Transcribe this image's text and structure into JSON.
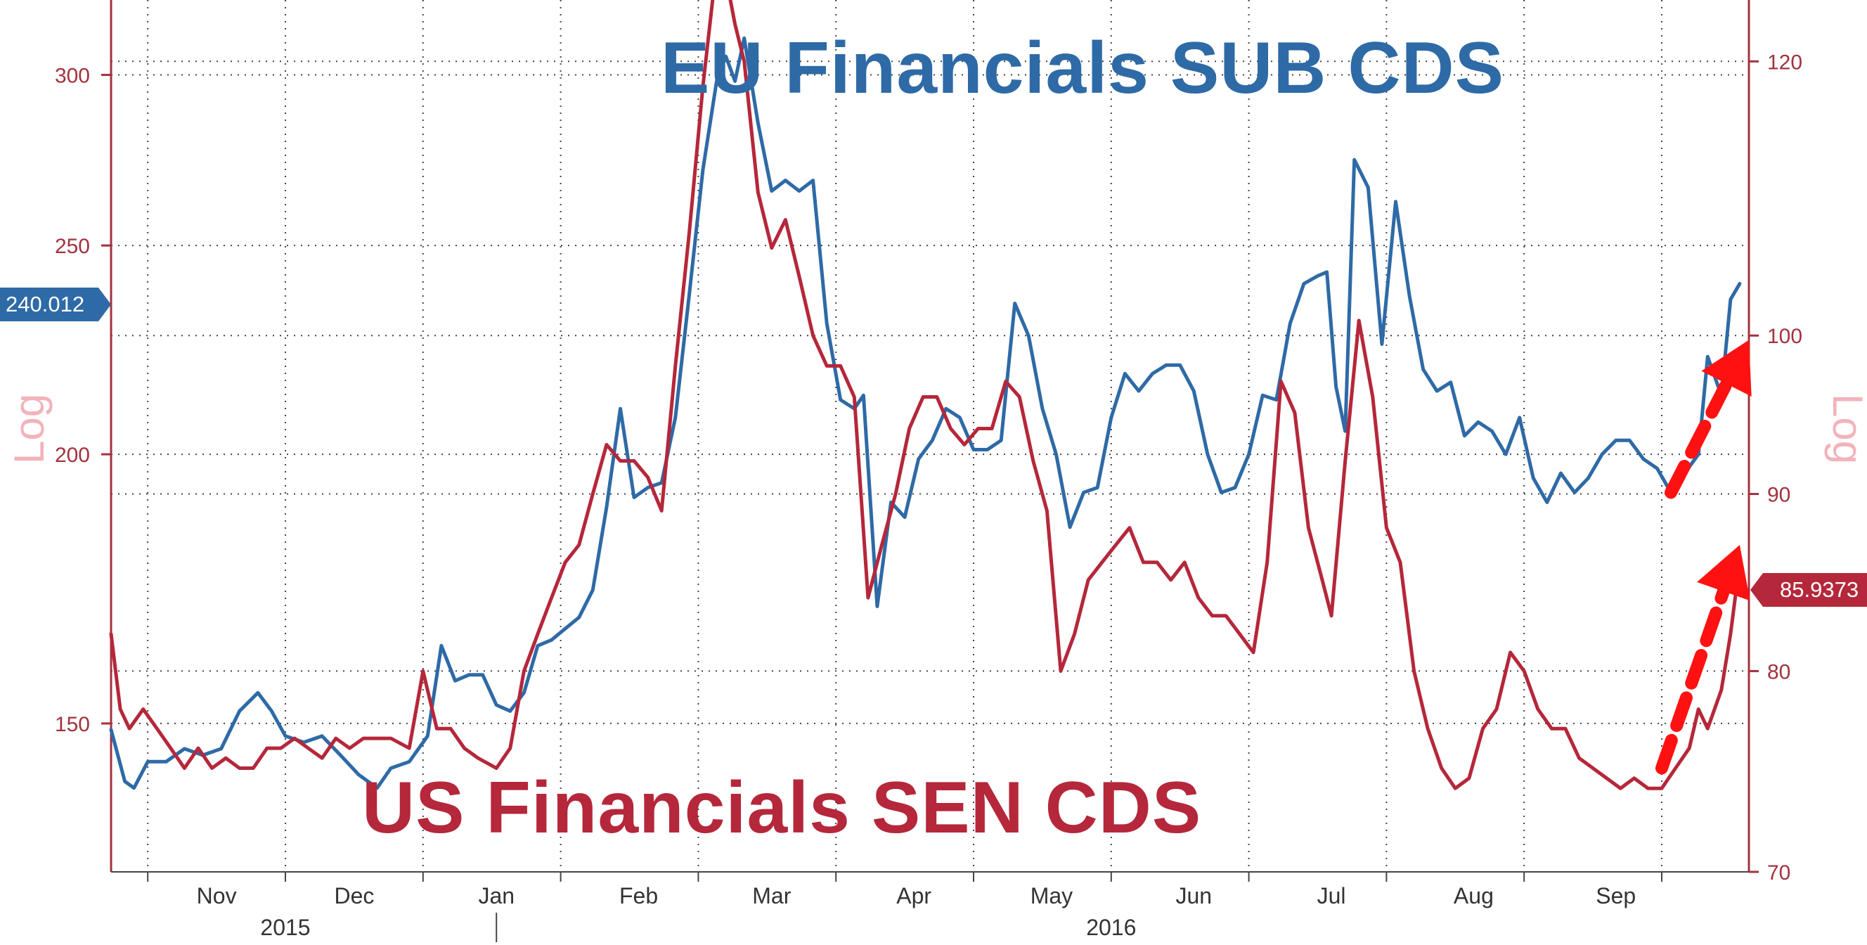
{
  "chart_data": {
    "type": "line",
    "title_eu": "EU Financials SUB CDS",
    "title_us": "US Financials SEN CDS",
    "left_axis": {
      "label": "Log",
      "scale": "log",
      "range": [
        128,
        325
      ],
      "ticks": [
        150,
        200,
        250,
        300
      ]
    },
    "right_axis": {
      "label": "Log",
      "scale": "log",
      "range": [
        70,
        125
      ],
      "ticks": [
        70,
        80,
        90,
        100,
        120
      ]
    },
    "x_axis": {
      "range": [
        "2015-10-09",
        "2016-09-30"
      ],
      "month_ticks": [
        "2015-10-17",
        "2015-11-16",
        "2015-12-16",
        "2016-01-15",
        "2016-02-14",
        "2016-03-15",
        "2016-04-14",
        "2016-05-14",
        "2016-06-13",
        "2016-07-13",
        "2016-08-12",
        "2016-09-11"
      ],
      "month_labels": [
        {
          "label": "Nov",
          "date": "2015-11-01"
        },
        {
          "label": "Dec",
          "date": "2015-12-01"
        },
        {
          "label": "Jan",
          "date": "2016-01-01"
        },
        {
          "label": "Feb",
          "date": "2016-02-01"
        },
        {
          "label": "Mar",
          "date": "2016-03-01"
        },
        {
          "label": "Apr",
          "date": "2016-04-01"
        },
        {
          "label": "May",
          "date": "2016-05-01"
        },
        {
          "label": "Jun",
          "date": "2016-06-01"
        },
        {
          "label": "Jul",
          "date": "2016-07-01"
        },
        {
          "label": "Aug",
          "date": "2016-08-01"
        },
        {
          "label": "Sep",
          "date": "2016-09-01"
        }
      ],
      "year_labels": [
        {
          "label": "2015",
          "date": "2015-11-16"
        },
        {
          "label": "2016",
          "date": "2016-05-14"
        }
      ],
      "year_divider": "2016-01-01"
    },
    "grid": true,
    "series": [
      {
        "name": "EU Financials SUB CDS",
        "axis": "left",
        "color": "#2e6aa6",
        "last_value": "240.012",
        "points": [
          [
            "2015-10-09",
            149
          ],
          [
            "2015-10-12",
            141
          ],
          [
            "2015-10-14",
            140
          ],
          [
            "2015-10-17",
            144
          ],
          [
            "2015-10-21",
            144
          ],
          [
            "2015-10-25",
            146
          ],
          [
            "2015-10-29",
            145
          ],
          [
            "2015-11-02",
            146
          ],
          [
            "2015-11-06",
            152
          ],
          [
            "2015-11-10",
            155
          ],
          [
            "2015-11-13",
            152
          ],
          [
            "2015-11-16",
            148
          ],
          [
            "2015-11-20",
            147
          ],
          [
            "2015-11-24",
            148
          ],
          [
            "2015-11-28",
            145
          ],
          [
            "2015-12-02",
            142
          ],
          [
            "2015-12-06",
            140
          ],
          [
            "2015-12-09",
            143
          ],
          [
            "2015-12-13",
            144
          ],
          [
            "2015-12-17",
            148
          ],
          [
            "2015-12-20",
            163
          ],
          [
            "2015-12-23",
            157
          ],
          [
            "2015-12-26",
            158
          ],
          [
            "2015-12-29",
            158
          ],
          [
            "2016-01-01",
            153
          ],
          [
            "2016-01-04",
            152
          ],
          [
            "2016-01-07",
            155
          ],
          [
            "2016-01-10",
            163
          ],
          [
            "2016-01-13",
            164
          ],
          [
            "2016-01-16",
            166
          ],
          [
            "2016-01-19",
            168
          ],
          [
            "2016-01-22",
            173
          ],
          [
            "2016-01-25",
            189
          ],
          [
            "2016-01-28",
            210
          ],
          [
            "2016-01-31",
            191
          ],
          [
            "2016-02-03",
            193
          ],
          [
            "2016-02-06",
            194
          ],
          [
            "2016-02-09",
            208
          ],
          [
            "2016-02-12",
            237
          ],
          [
            "2016-02-15",
            271
          ],
          [
            "2016-02-18",
            298
          ],
          [
            "2016-02-20",
            306
          ],
          [
            "2016-02-22",
            298
          ],
          [
            "2016-02-24",
            312
          ],
          [
            "2016-02-27",
            285
          ],
          [
            "2016-03-01",
            265
          ],
          [
            "2016-03-04",
            268
          ],
          [
            "2016-03-07",
            265
          ],
          [
            "2016-03-10",
            268
          ],
          [
            "2016-03-13",
            230
          ],
          [
            "2016-03-16",
            212
          ],
          [
            "2016-03-19",
            210
          ],
          [
            "2016-03-21",
            213
          ],
          [
            "2016-03-24",
            170
          ],
          [
            "2016-03-27",
            190
          ],
          [
            "2016-03-30",
            187
          ],
          [
            "2016-04-02",
            199
          ],
          [
            "2016-04-05",
            203
          ],
          [
            "2016-04-08",
            210
          ],
          [
            "2016-04-11",
            208
          ],
          [
            "2016-04-14",
            201
          ],
          [
            "2016-04-17",
            201
          ],
          [
            "2016-04-20",
            203
          ],
          [
            "2016-04-23",
            235
          ],
          [
            "2016-04-26",
            227
          ],
          [
            "2016-04-29",
            210
          ],
          [
            "2016-05-02",
            200
          ],
          [
            "2016-05-05",
            185
          ],
          [
            "2016-05-08",
            192
          ],
          [
            "2016-05-11",
            193
          ],
          [
            "2016-05-14",
            208
          ],
          [
            "2016-05-17",
            218
          ],
          [
            "2016-05-20",
            214
          ],
          [
            "2016-05-23",
            218
          ],
          [
            "2016-05-26",
            220
          ],
          [
            "2016-05-29",
            220
          ],
          [
            "2016-06-01",
            214
          ],
          [
            "2016-06-04",
            200
          ],
          [
            "2016-06-07",
            192
          ],
          [
            "2016-06-10",
            193
          ],
          [
            "2016-06-13",
            200
          ],
          [
            "2016-06-16",
            213
          ],
          [
            "2016-06-19",
            212
          ],
          [
            "2016-06-22",
            230
          ],
          [
            "2016-06-25",
            240
          ],
          [
            "2016-06-28",
            242
          ],
          [
            "2016-06-30",
            243
          ],
          [
            "2016-07-02",
            215
          ],
          [
            "2016-07-04",
            205
          ],
          [
            "2016-07-06",
            274
          ],
          [
            "2016-07-09",
            266
          ],
          [
            "2016-07-12",
            225
          ],
          [
            "2016-07-15",
            262
          ],
          [
            "2016-07-18",
            237
          ],
          [
            "2016-07-21",
            219
          ],
          [
            "2016-07-24",
            214
          ],
          [
            "2016-07-27",
            216
          ],
          [
            "2016-07-30",
            204
          ],
          [
            "2016-08-02",
            207
          ],
          [
            "2016-08-05",
            205
          ],
          [
            "2016-08-08",
            200
          ],
          [
            "2016-08-11",
            208
          ],
          [
            "2016-08-14",
            195
          ],
          [
            "2016-08-17",
            190
          ],
          [
            "2016-08-20",
            196
          ],
          [
            "2016-08-23",
            192
          ],
          [
            "2016-08-26",
            195
          ],
          [
            "2016-08-29",
            200
          ],
          [
            "2016-09-01",
            203
          ],
          [
            "2016-09-04",
            203
          ],
          [
            "2016-09-07",
            199
          ],
          [
            "2016-09-10",
            197
          ],
          [
            "2016-09-13",
            192
          ],
          [
            "2016-09-16",
            196
          ],
          [
            "2016-09-19",
            200
          ],
          [
            "2016-09-21",
            222
          ],
          [
            "2016-09-24",
            213
          ],
          [
            "2016-09-26",
            236
          ],
          [
            "2016-09-28",
            240
          ]
        ]
      },
      {
        "name": "US Financials SEN CDS",
        "axis": "right",
        "color": "#b5273a",
        "last_value": "85.9373",
        "points": [
          [
            "2015-10-09",
            82
          ],
          [
            "2015-10-11",
            78
          ],
          [
            "2015-10-13",
            77
          ],
          [
            "2015-10-16",
            78
          ],
          [
            "2015-10-19",
            77
          ],
          [
            "2015-10-22",
            76
          ],
          [
            "2015-10-25",
            75
          ],
          [
            "2015-10-28",
            76
          ],
          [
            "2015-10-31",
            75
          ],
          [
            "2015-11-03",
            75.5
          ],
          [
            "2015-11-06",
            75
          ],
          [
            "2015-11-09",
            75
          ],
          [
            "2015-11-12",
            76
          ],
          [
            "2015-11-15",
            76
          ],
          [
            "2015-11-18",
            76.5
          ],
          [
            "2015-11-21",
            76
          ],
          [
            "2015-11-24",
            75.5
          ],
          [
            "2015-11-27",
            76.5
          ],
          [
            "2015-11-30",
            76
          ],
          [
            "2015-12-03",
            76.5
          ],
          [
            "2015-12-06",
            76.5
          ],
          [
            "2015-12-09",
            76.5
          ],
          [
            "2015-12-13",
            76
          ],
          [
            "2015-12-16",
            80
          ],
          [
            "2015-12-19",
            77
          ],
          [
            "2015-12-22",
            77
          ],
          [
            "2015-12-25",
            76
          ],
          [
            "2015-12-28",
            75.5
          ],
          [
            "2016-01-01",
            75
          ],
          [
            "2016-01-04",
            76
          ],
          [
            "2016-01-07",
            80
          ],
          [
            "2016-01-10",
            82
          ],
          [
            "2016-01-13",
            84
          ],
          [
            "2016-01-16",
            86
          ],
          [
            "2016-01-19",
            87
          ],
          [
            "2016-01-22",
            90
          ],
          [
            "2016-01-25",
            93
          ],
          [
            "2016-01-28",
            92
          ],
          [
            "2016-01-31",
            92
          ],
          [
            "2016-02-03",
            91
          ],
          [
            "2016-02-06",
            89
          ],
          [
            "2016-02-09",
            98
          ],
          [
            "2016-02-12",
            107
          ],
          [
            "2016-02-15",
            118
          ],
          [
            "2016-02-18",
            128
          ],
          [
            "2016-02-20",
            127
          ],
          [
            "2016-02-22",
            123
          ],
          [
            "2016-02-24",
            120
          ],
          [
            "2016-02-27",
            110
          ],
          [
            "2016-03-01",
            106
          ],
          [
            "2016-03-04",
            108
          ],
          [
            "2016-03-07",
            104
          ],
          [
            "2016-03-10",
            100
          ],
          [
            "2016-03-13",
            98
          ],
          [
            "2016-03-16",
            98
          ],
          [
            "2016-03-19",
            96
          ],
          [
            "2016-03-22",
            84
          ],
          [
            "2016-03-25",
            87
          ],
          [
            "2016-03-28",
            90
          ],
          [
            "2016-03-31",
            94
          ],
          [
            "2016-04-03",
            96
          ],
          [
            "2016-04-06",
            96
          ],
          [
            "2016-04-09",
            94
          ],
          [
            "2016-04-12",
            93
          ],
          [
            "2016-04-15",
            94
          ],
          [
            "2016-04-18",
            94
          ],
          [
            "2016-04-21",
            97
          ],
          [
            "2016-04-24",
            96
          ],
          [
            "2016-04-27",
            92
          ],
          [
            "2016-04-30",
            89
          ],
          [
            "2016-05-03",
            80
          ],
          [
            "2016-05-06",
            82
          ],
          [
            "2016-05-09",
            85
          ],
          [
            "2016-05-12",
            86
          ],
          [
            "2016-05-15",
            87
          ],
          [
            "2016-05-18",
            88
          ],
          [
            "2016-05-21",
            86
          ],
          [
            "2016-05-24",
            86
          ],
          [
            "2016-05-27",
            85
          ],
          [
            "2016-05-30",
            86
          ],
          [
            "2016-06-02",
            84
          ],
          [
            "2016-06-05",
            83
          ],
          [
            "2016-06-08",
            83
          ],
          [
            "2016-06-11",
            82
          ],
          [
            "2016-06-14",
            81
          ],
          [
            "2016-06-17",
            86
          ],
          [
            "2016-06-20",
            97
          ],
          [
            "2016-06-23",
            95
          ],
          [
            "2016-06-26",
            88
          ],
          [
            "2016-06-29",
            85
          ],
          [
            "2016-07-01",
            83
          ],
          [
            "2016-07-04",
            92
          ],
          [
            "2016-07-07",
            101
          ],
          [
            "2016-07-10",
            96
          ],
          [
            "2016-07-13",
            88
          ],
          [
            "2016-07-16",
            86
          ],
          [
            "2016-07-19",
            80
          ],
          [
            "2016-07-22",
            77
          ],
          [
            "2016-07-25",
            75
          ],
          [
            "2016-07-28",
            74
          ],
          [
            "2016-07-31",
            74.5
          ],
          [
            "2016-08-03",
            77
          ],
          [
            "2016-08-06",
            78
          ],
          [
            "2016-08-09",
            81
          ],
          [
            "2016-08-12",
            80
          ],
          [
            "2016-08-15",
            78
          ],
          [
            "2016-08-18",
            77
          ],
          [
            "2016-08-21",
            77
          ],
          [
            "2016-08-24",
            75.5
          ],
          [
            "2016-08-27",
            75
          ],
          [
            "2016-08-30",
            74.5
          ],
          [
            "2016-09-02",
            74
          ],
          [
            "2016-09-05",
            74.5
          ],
          [
            "2016-09-08",
            74
          ],
          [
            "2016-09-11",
            74
          ],
          [
            "2016-09-14",
            75
          ],
          [
            "2016-09-17",
            76
          ],
          [
            "2016-09-19",
            78
          ],
          [
            "2016-09-21",
            77
          ],
          [
            "2016-09-24",
            79
          ],
          [
            "2016-09-26",
            82
          ],
          [
            "2016-09-28",
            86
          ]
        ]
      }
    ],
    "colors": {
      "eu": "#2e6aa6",
      "us": "#b5273a",
      "axis_left": "#a3323f",
      "axis_right": "#a3323f",
      "axis_title": "#f2b3bb",
      "grid": "#444444",
      "arrow": "#ff1111"
    },
    "annotations": [
      {
        "type": "arrow",
        "color": "#ff1111",
        "style": "dashed",
        "from": [
          "2016-09-13",
          192
        ],
        "to": [
          "2016-09-30",
          226
        ],
        "axis": "left"
      },
      {
        "type": "arrow",
        "color": "#ff1111",
        "style": "dashed",
        "from": [
          "2016-09-11",
          75
        ],
        "to": [
          "2016-09-28",
          87
        ],
        "axis": "right"
      }
    ]
  }
}
